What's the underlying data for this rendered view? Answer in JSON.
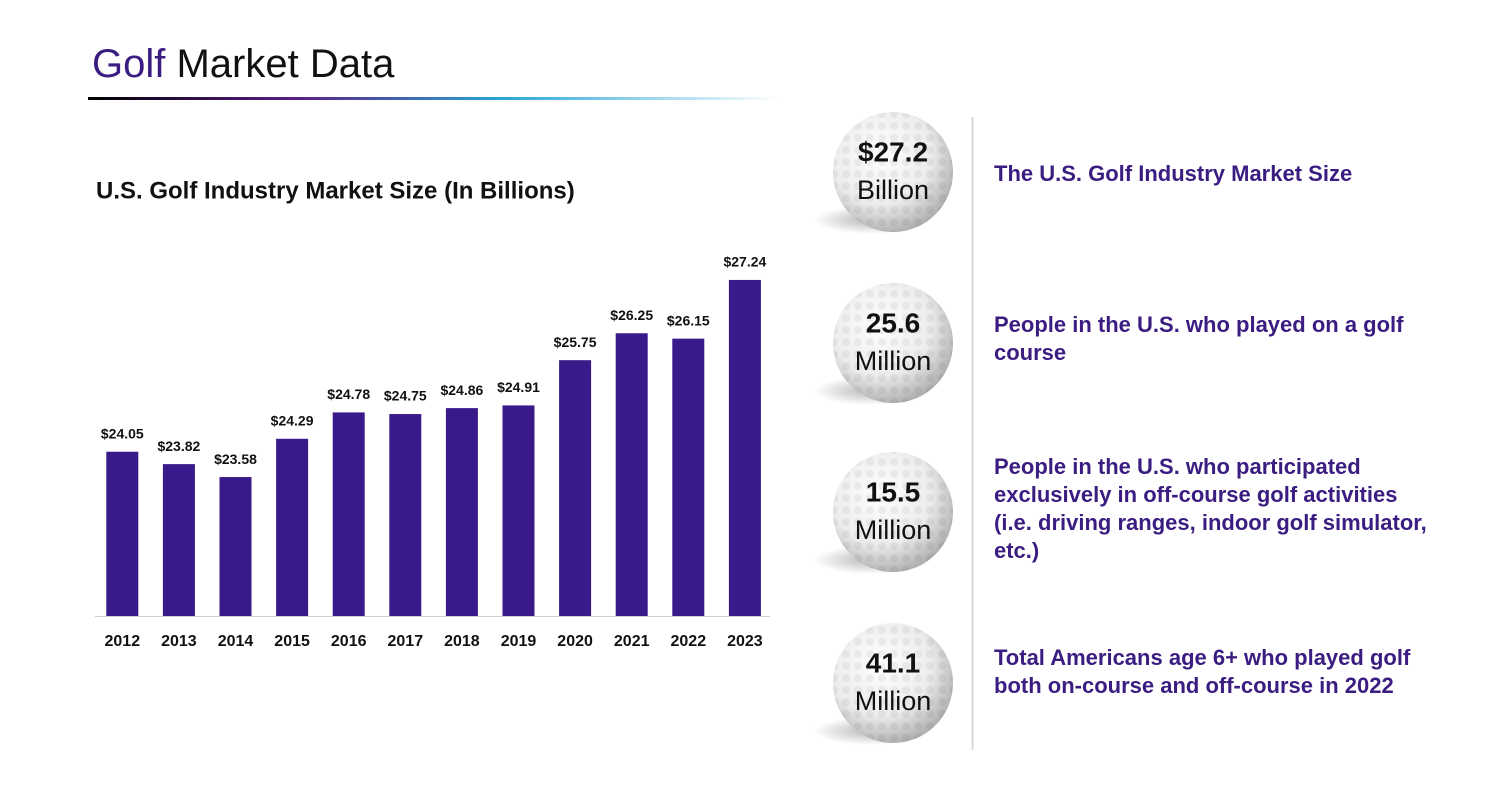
{
  "header": {
    "title_highlight": "Golf",
    "title": "Market Data"
  },
  "chart_data": {
    "type": "bar",
    "title": "U.S. Golf Industry Market Size (In Billions)",
    "categories": [
      "2012",
      "2013",
      "2014",
      "2015",
      "2016",
      "2017",
      "2018",
      "2019",
      "2020",
      "2021",
      "2022",
      "2023"
    ],
    "values": [
      24.05,
      23.82,
      23.58,
      24.29,
      24.78,
      24.75,
      24.86,
      24.91,
      25.75,
      26.25,
      26.15,
      27.24
    ],
    "value_labels": [
      "$24.05",
      "$23.82",
      "$23.58",
      "$24.29",
      "$24.78",
      "$24.75",
      "$24.86",
      "$24.91",
      "$25.75",
      "$26.25",
      "$26.15",
      "$27.24"
    ],
    "color": "#3a1a8a",
    "ylim": [
      21,
      28
    ]
  },
  "stats": [
    {
      "value": "$27.2",
      "unit": "Billion",
      "description": "The U.S. Golf Industry Market Size"
    },
    {
      "value": "25.6",
      "unit": "Million",
      "description": "People in the U.S. who played on a golf course"
    },
    {
      "value": "15.5",
      "unit": "Million",
      "description": "People in the U.S. who participated exclusively in off-course golf activities (i.e. driving ranges, indoor golf simulator, etc.)"
    },
    {
      "value": "41.1",
      "unit": "Million",
      "description": "Total Americans age 6+ who played golf both on-course and off-course in 2022"
    }
  ]
}
